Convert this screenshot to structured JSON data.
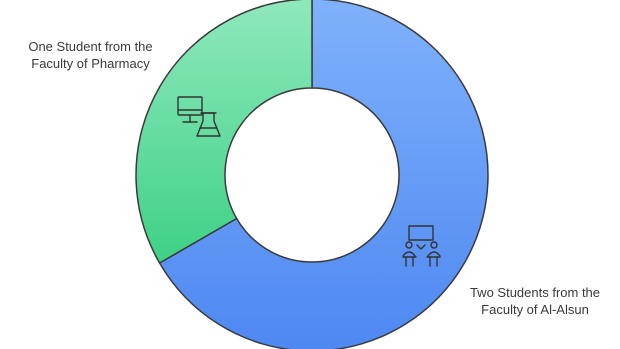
{
  "chart_data": {
    "type": "pie",
    "style": "donut",
    "series": [
      {
        "name": "",
        "values": [
          1,
          2
        ],
        "labels": [
          [
            "One Student from the",
            "Faculty of Pharmacy"
          ],
          [
            "Two Students from the",
            "Faculty of Al-Alsun"
          ]
        ]
      }
    ],
    "categories": [
      "One Student from the Faculty of Pharmacy",
      "Two Students from the Faculty of Al-Alsun"
    ],
    "colors": [
      "#4cd98f",
      "#5b96f7"
    ],
    "icons": [
      "computer-flask-icon",
      "students-presentation-icon"
    ],
    "legend": "none",
    "title": ""
  }
}
